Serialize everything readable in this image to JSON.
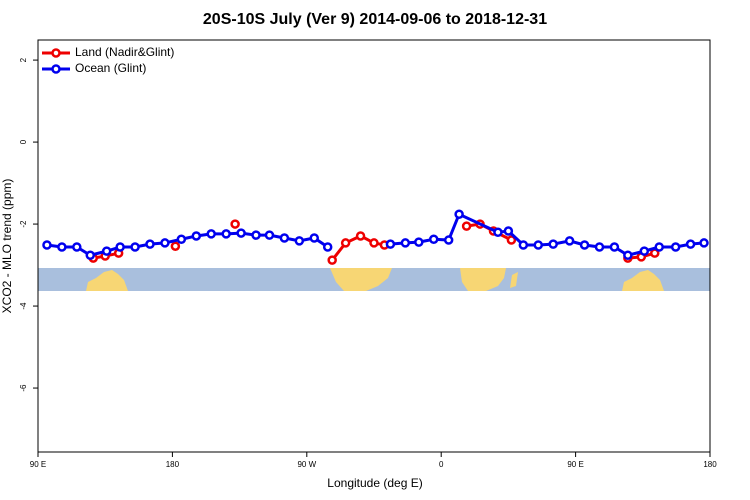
{
  "chart_data": {
    "type": "line",
    "title": "20S-10S July (Ver 9)   2014-09-06 to 2018-12-31",
    "x_label": "Longitude (deg E)",
    "y_label": "XCO2 - MLO trend (ppm)",
    "xlim": [
      90,
      540
    ],
    "xticks": [
      {
        "value": 90,
        "label": "90 E"
      },
      180,
      {
        "value": 270,
        "label": "90 W"
      },
      {
        "value": 360,
        "label": "0"
      },
      {
        "value": 450,
        "label": "90 E"
      },
      {
        "value": 540,
        "label": "180"
      }
    ],
    "ylim": [
      -7.56,
      2.49
    ],
    "yticks": [
      -6,
      -4,
      -2,
      0,
      2
    ],
    "legend": "top-left",
    "series": [
      {
        "name": "Land (Nadir&Glint)",
        "color": "#ee0000",
        "x": [
          127,
          135,
          144,
          null,
          182,
          null,
          222,
          null,
          287,
          296,
          306,
          315,
          322,
          null,
          377,
          386,
          395,
          407,
          null,
          485,
          494,
          503
        ],
        "values": [
          -2.83,
          -2.78,
          -2.71,
          null,
          -2.54,
          null,
          -2.0,
          null,
          -2.88,
          -2.46,
          -2.29,
          -2.46,
          -2.51,
          null,
          -2.05,
          -2.0,
          -2.17,
          -2.39,
          null,
          -2.83,
          -2.8,
          -2.71
        ]
      },
      {
        "name": "Ocean (Glint)",
        "color": "#0000ee",
        "x": [
          96,
          106,
          116,
          125,
          136,
          145,
          155,
          165,
          175,
          186,
          196,
          206,
          216,
          226,
          236,
          245,
          255,
          265,
          275,
          284,
          null,
          326,
          336,
          345,
          355,
          365,
          372,
          398,
          405,
          415,
          425,
          435,
          446,
          456,
          466,
          476,
          485,
          496,
          506,
          517,
          527,
          536
        ],
        "values": [
          -2.51,
          -2.56,
          -2.56,
          -2.76,
          -2.66,
          -2.56,
          -2.56,
          -2.49,
          -2.46,
          -2.37,
          -2.29,
          -2.24,
          -2.24,
          -2.22,
          -2.27,
          -2.27,
          -2.34,
          -2.41,
          -2.34,
          -2.56,
          null,
          -2.49,
          -2.46,
          -2.44,
          -2.37,
          -2.39,
          -1.76,
          -2.2,
          -2.17,
          -2.51,
          -2.51,
          -2.49,
          -2.41,
          -2.51,
          -2.56,
          -2.56,
          -2.76,
          -2.66,
          -2.56,
          -2.56,
          -2.49,
          -2.46
        ]
      }
    ]
  }
}
